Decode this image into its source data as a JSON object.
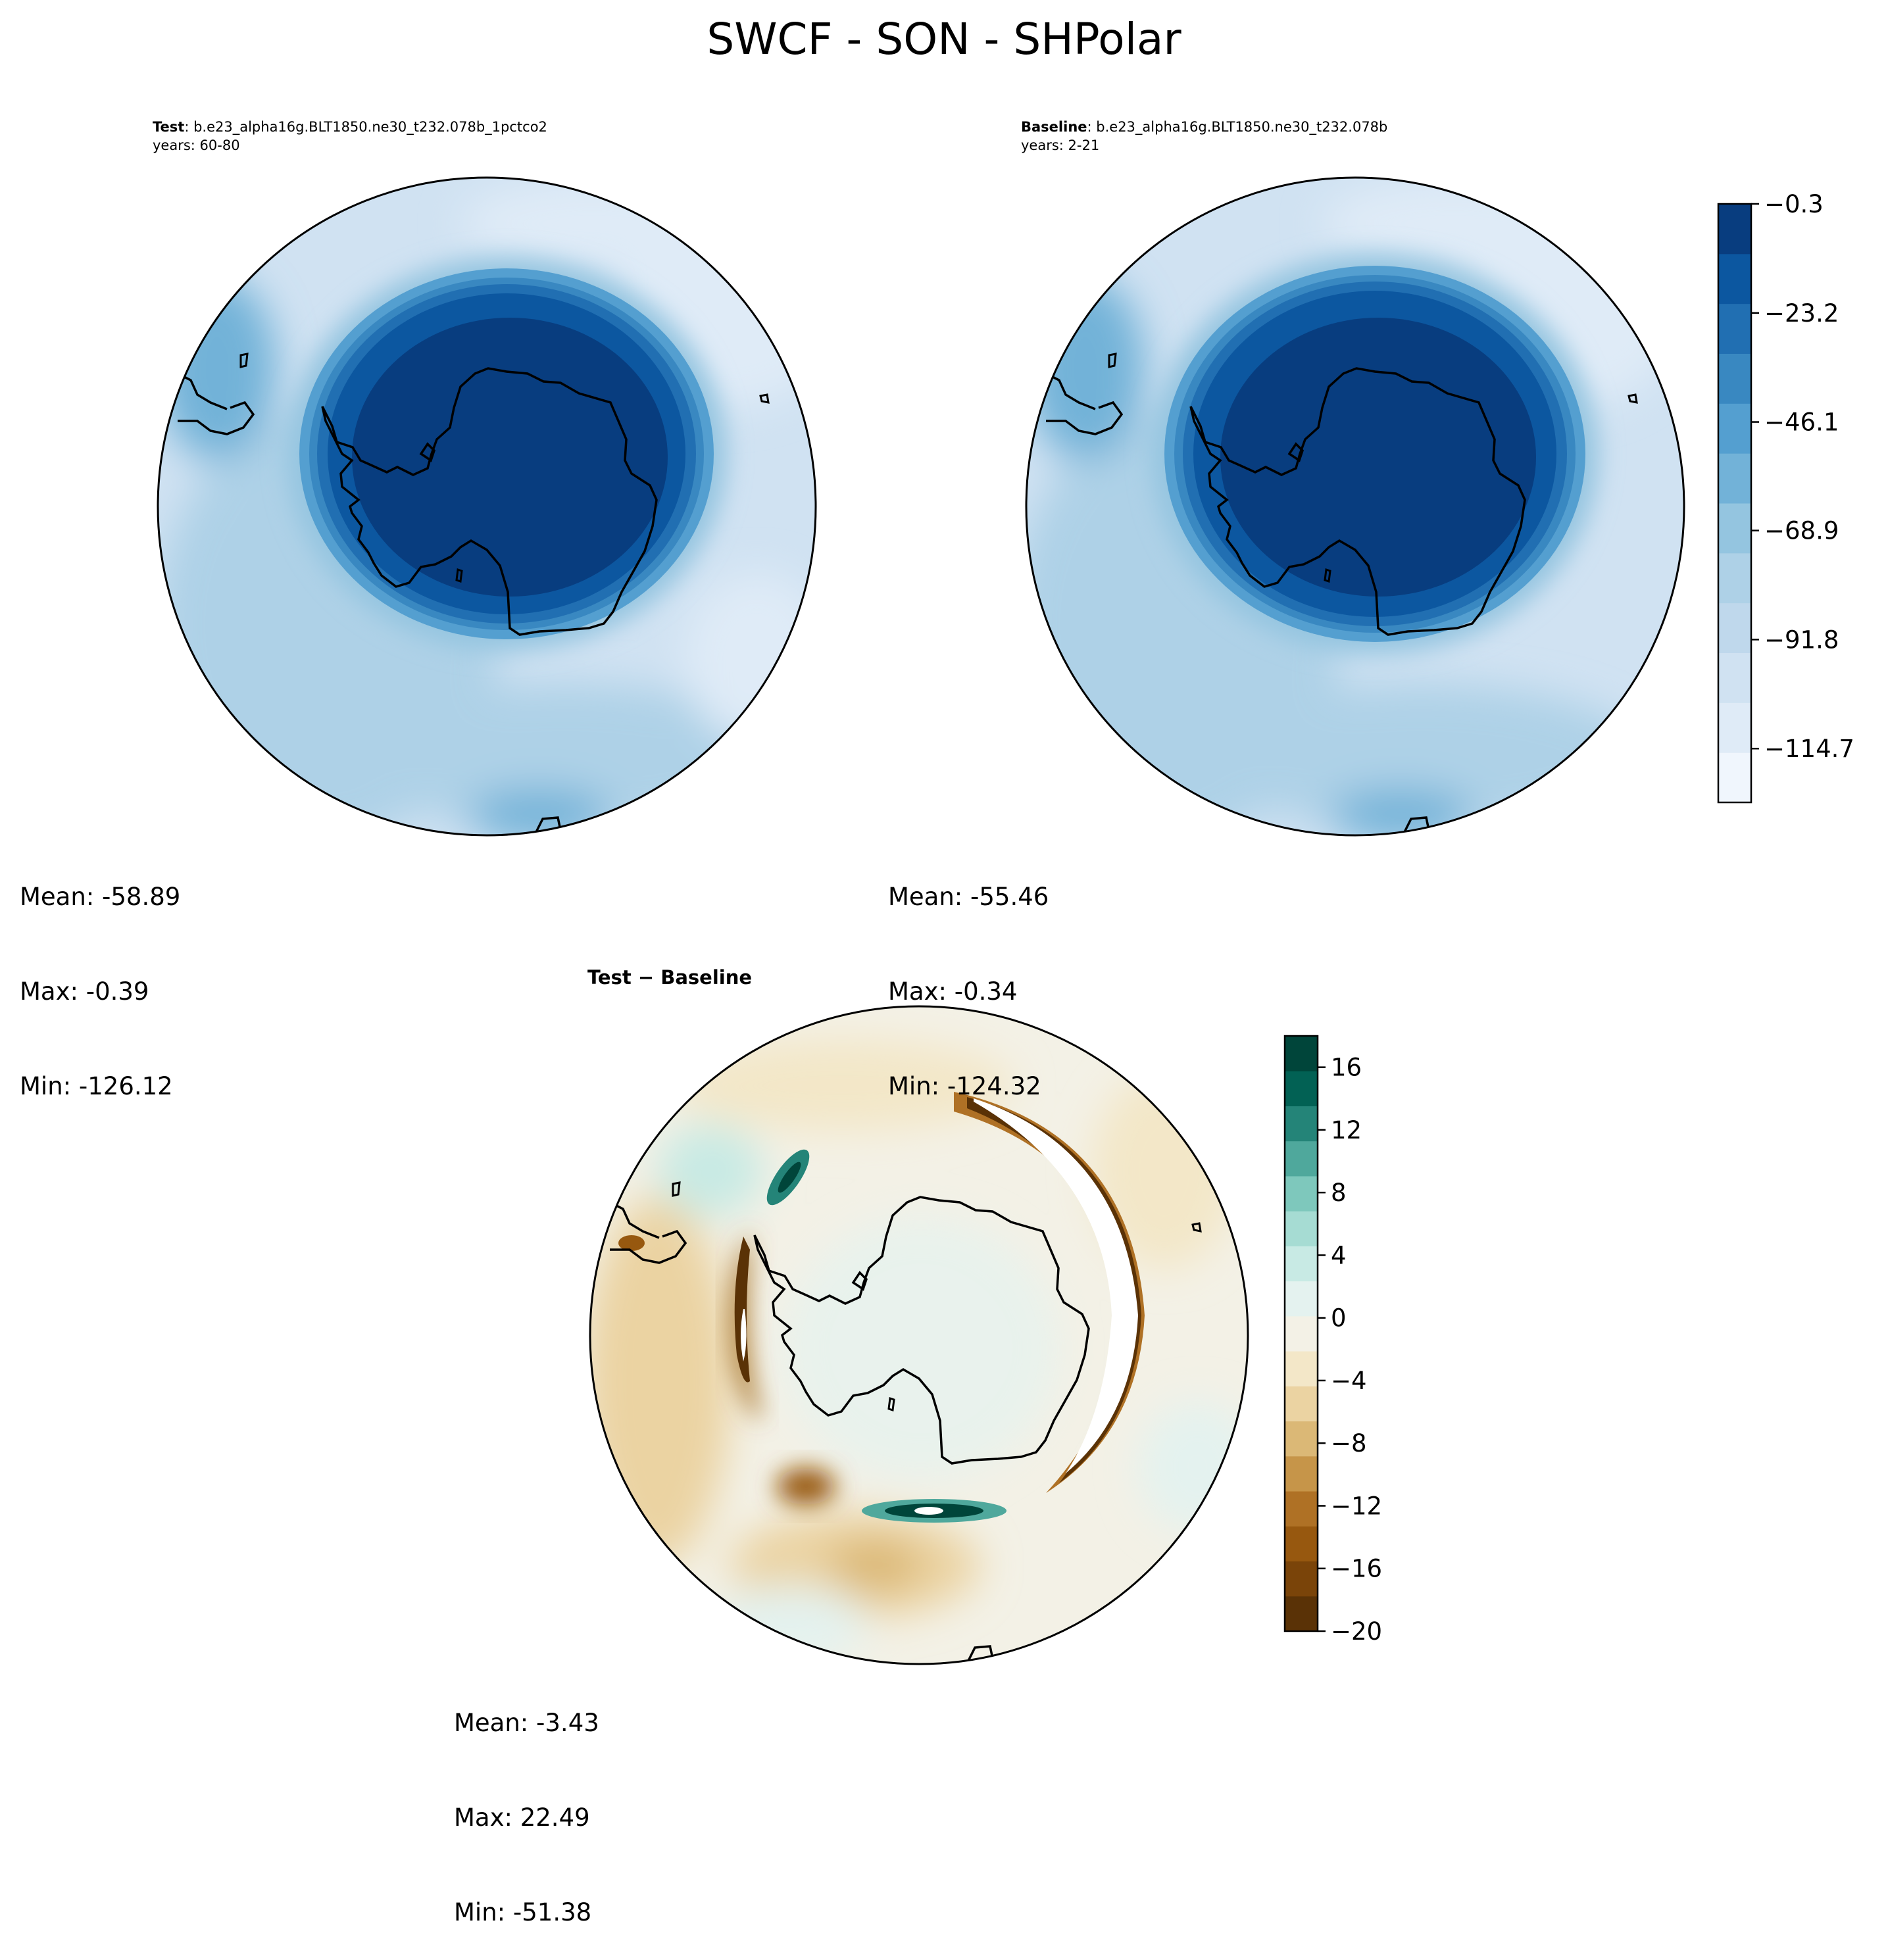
{
  "title": "SWCF - SON - SHPolar",
  "panels": {
    "test": {
      "label_bold": "Test",
      "label_rest": ": b.e23_alpha16g.BLT1850.ne30_t232.078b_1pctco2",
      "years": "years: 60-80",
      "stats": {
        "mean": "Mean: -58.89",
        "max": "Max: -0.39",
        "min": "Min: -126.12"
      }
    },
    "baseline": {
      "label_bold": "Baseline",
      "label_rest": ": b.e23_alpha16g.BLT1850.ne30_t232.078b",
      "years": "years: 2-21",
      "stats": {
        "mean": "Mean: -55.46",
        "max": "Max: -0.34",
        "min": "Min: -124.32"
      }
    },
    "diff": {
      "label": "Test − Baseline",
      "stats": {
        "mean": "Mean: -3.43",
        "max": "Max: 22.49",
        "min": "Min: -51.38"
      }
    }
  },
  "chart_data": [
    {
      "type": "heatmap",
      "name": "Test",
      "projection": "south-polar-stereographic",
      "mean": -58.89,
      "max": -0.39,
      "min": -126.12,
      "pattern": "high values over Antarctica, decreasing outward to ocean band"
    },
    {
      "type": "heatmap",
      "name": "Baseline",
      "projection": "south-polar-stereographic",
      "mean": -55.46,
      "max": -0.34,
      "min": -124.32
    },
    {
      "type": "heatmap",
      "name": "Test - Baseline",
      "projection": "south-polar-stereographic",
      "mean": -3.43,
      "max": 22.49,
      "min": -51.38
    }
  ],
  "colorbars": {
    "main": {
      "ticks": [
        "−0.3",
        "−23.2",
        "−46.1",
        "−68.9",
        "−91.8",
        "−114.7"
      ],
      "tick_values": [
        -0.3,
        -23.2,
        -46.1,
        -68.9,
        -91.8,
        -114.7
      ],
      "range": [
        -126.0,
        -0.3
      ],
      "colors": [
        "#f0f6fd",
        "#dfebf7",
        "#d0e2f2",
        "#bfd8ec",
        "#aed1e7",
        "#94c5e0",
        "#72b2d8",
        "#549fd0",
        "#3988c1",
        "#216fb2",
        "#0c57a0",
        "#083d7f"
      ]
    },
    "diff": {
      "ticks": [
        "16",
        "12",
        "8",
        "4",
        "0",
        "−4",
        "−8",
        "−12",
        "−16",
        "−20"
      ],
      "tick_values": [
        16,
        12,
        8,
        4,
        0,
        -4,
        -8,
        -12,
        -16,
        -20
      ],
      "range": [
        -20,
        18
      ],
      "colors": [
        "#5a3206",
        "#7a4409",
        "#97580f",
        "#af7125",
        "#c69549",
        "#dbb876",
        "#ebd3a2",
        "#f3e7c8",
        "#f3f1e6",
        "#e4f2ef",
        "#c8eae4",
        "#a6dcd3",
        "#7ec8bc",
        "#4fa89c",
        "#248478",
        "#026154",
        "#00453a"
      ]
    }
  },
  "colors": {
    "antarctica": "#083d7f",
    "outline": "#000000"
  }
}
